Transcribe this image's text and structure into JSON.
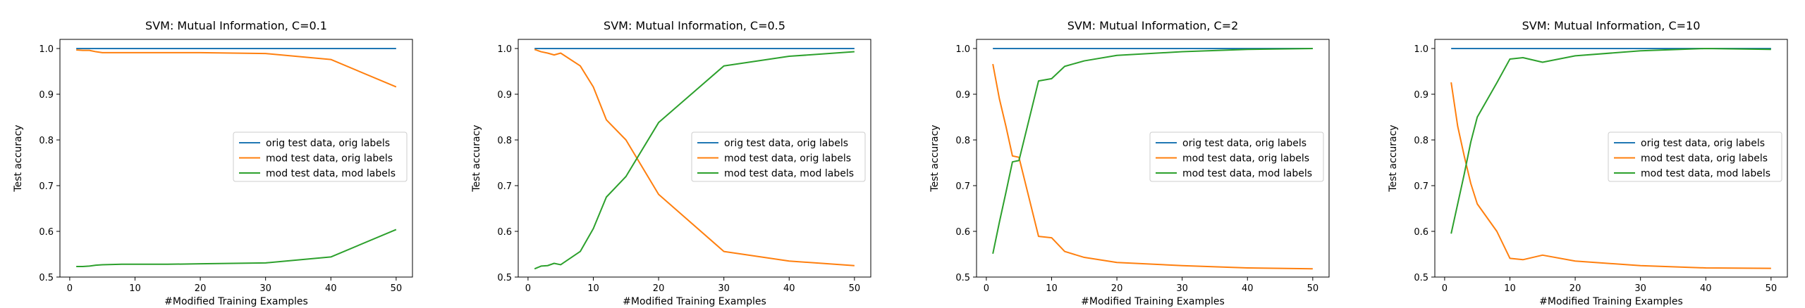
{
  "chart_data": [
    {
      "type": "line",
      "title": "SVM: Mutual Information, C=0.1",
      "xlabel": "#Modified Training Examples",
      "ylabel": "Test accuracy",
      "xlim": [
        -1.5,
        52.5
      ],
      "ylim": [
        0.5,
        1.02
      ],
      "xticks": [
        0,
        10,
        20,
        30,
        40,
        50
      ],
      "yticks": [
        0.5,
        0.6,
        0.7,
        0.8,
        0.9,
        1.0
      ],
      "legend_position": "center-right",
      "x": [
        1,
        2,
        3,
        4,
        5,
        8,
        10,
        12,
        15,
        20,
        30,
        40,
        50
      ],
      "series": [
        {
          "name": "orig test data, orig labels",
          "color": "#1f77b4",
          "values": [
            1.0,
            1.0,
            1.0,
            1.0,
            1.0,
            1.0,
            1.0,
            1.0,
            1.0,
            1.0,
            1.0,
            1.0,
            1.0
          ]
        },
        {
          "name": "mod test data, orig labels",
          "color": "#ff7f0e",
          "values": [
            0.997,
            0.996,
            0.996,
            0.993,
            0.991,
            0.991,
            0.991,
            0.991,
            0.991,
            0.991,
            0.989,
            0.976,
            0.916
          ]
        },
        {
          "name": "mod test data, mod labels",
          "color": "#2ca02c",
          "values": [
            0.523,
            0.523,
            0.524,
            0.526,
            0.527,
            0.528,
            0.528,
            0.528,
            0.528,
            0.529,
            0.531,
            0.544,
            0.604
          ]
        }
      ]
    },
    {
      "type": "line",
      "title": "SVM: Mutual Information, C=0.5",
      "xlabel": "#Modified Training Examples",
      "ylabel": "Test accuracy",
      "xlim": [
        -1.5,
        52.5
      ],
      "ylim": [
        0.5,
        1.02
      ],
      "xticks": [
        0,
        10,
        20,
        30,
        40,
        50
      ],
      "yticks": [
        0.5,
        0.6,
        0.7,
        0.8,
        0.9,
        1.0
      ],
      "legend_position": "center-right",
      "x": [
        1,
        2,
        3,
        4,
        5,
        8,
        10,
        12,
        15,
        20,
        30,
        40,
        50
      ],
      "series": [
        {
          "name": "orig test data, orig labels",
          "color": "#1f77b4",
          "values": [
            1.0,
            1.0,
            1.0,
            1.0,
            1.0,
            1.0,
            1.0,
            1.0,
            1.0,
            1.0,
            1.0,
            1.0,
            1.0
          ]
        },
        {
          "name": "mod test data, orig labels",
          "color": "#ff7f0e",
          "values": [
            0.998,
            0.993,
            0.99,
            0.986,
            0.99,
            0.962,
            0.916,
            0.844,
            0.8,
            0.681,
            0.556,
            0.535,
            0.525
          ]
        },
        {
          "name": "mod test data, mod labels",
          "color": "#2ca02c",
          "values": [
            0.518,
            0.524,
            0.525,
            0.53,
            0.527,
            0.556,
            0.606,
            0.675,
            0.72,
            0.838,
            0.962,
            0.983,
            0.993
          ]
        }
      ]
    },
    {
      "type": "line",
      "title": "SVM: Mutual Information, C=2",
      "xlabel": "#Modified Training Examples",
      "ylabel": "Test accuracy",
      "xlim": [
        -1.5,
        52.5
      ],
      "ylim": [
        0.5,
        1.02
      ],
      "xticks": [
        0,
        10,
        20,
        30,
        40,
        50
      ],
      "yticks": [
        0.5,
        0.6,
        0.7,
        0.8,
        0.9,
        1.0
      ],
      "legend_position": "center-right",
      "x": [
        1,
        2,
        3,
        4,
        5,
        8,
        10,
        12,
        15,
        20,
        30,
        40,
        50
      ],
      "series": [
        {
          "name": "orig test data, orig labels",
          "color": "#1f77b4",
          "values": [
            1.0,
            1.0,
            1.0,
            1.0,
            1.0,
            1.0,
            1.0,
            1.0,
            1.0,
            1.0,
            1.0,
            1.0,
            1.0
          ]
        },
        {
          "name": "mod test data, orig labels",
          "color": "#ff7f0e",
          "values": [
            0.966,
            0.89,
            0.83,
            0.765,
            0.762,
            0.589,
            0.586,
            0.556,
            0.543,
            0.532,
            0.525,
            0.52,
            0.518
          ]
        },
        {
          "name": "mod test data, mod labels",
          "color": "#2ca02c",
          "values": [
            0.551,
            0.62,
            0.685,
            0.752,
            0.755,
            0.929,
            0.934,
            0.961,
            0.973,
            0.985,
            0.993,
            0.998,
            1.0
          ]
        }
      ]
    },
    {
      "type": "line",
      "title": "SVM: Mutual Information, C=10",
      "xlabel": "#Modified Training Examples",
      "ylabel": "Test accuracy",
      "xlim": [
        -1.5,
        52.5
      ],
      "ylim": [
        0.5,
        1.02
      ],
      "xticks": [
        0,
        10,
        20,
        30,
        40,
        50
      ],
      "yticks": [
        0.5,
        0.6,
        0.7,
        0.8,
        0.9,
        1.0
      ],
      "legend_position": "center-right",
      "x": [
        1,
        2,
        3,
        4,
        5,
        8,
        10,
        12,
        15,
        20,
        30,
        40,
        50
      ],
      "series": [
        {
          "name": "orig test data, orig labels",
          "color": "#1f77b4",
          "values": [
            1.0,
            1.0,
            1.0,
            1.0,
            1.0,
            1.0,
            1.0,
            1.0,
            1.0,
            1.0,
            1.0,
            1.0,
            1.0
          ]
        },
        {
          "name": "mod test data, orig labels",
          "color": "#ff7f0e",
          "values": [
            0.926,
            0.83,
            0.765,
            0.705,
            0.66,
            0.6,
            0.541,
            0.538,
            0.548,
            0.535,
            0.525,
            0.52,
            0.519
          ]
        },
        {
          "name": "mod test data, mod labels",
          "color": "#2ca02c",
          "values": [
            0.595,
            0.66,
            0.725,
            0.795,
            0.85,
            0.925,
            0.977,
            0.98,
            0.97,
            0.984,
            0.995,
            1.0,
            0.998
          ]
        }
      ]
    }
  ]
}
